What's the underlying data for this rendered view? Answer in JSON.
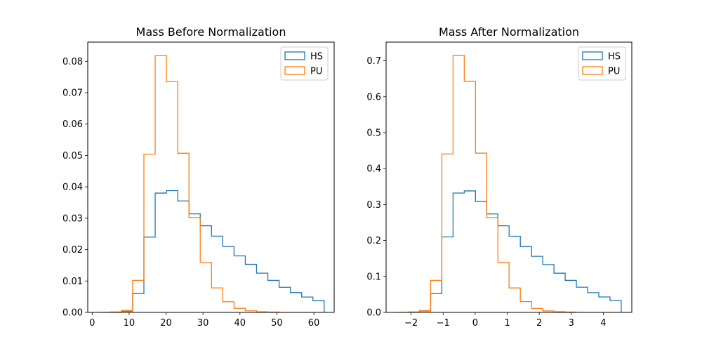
{
  "chart_data": [
    {
      "type": "histogram-step",
      "title": "Mass Before Normalization",
      "xlabel": "",
      "ylabel": "",
      "xlim": [
        -1.2,
        65.5
      ],
      "ylim": [
        0,
        0.0861
      ],
      "xticks": [
        0,
        10,
        20,
        30,
        40,
        50,
        60
      ],
      "xtick_labels": [
        "0",
        "10",
        "20",
        "30",
        "40",
        "50",
        "60"
      ],
      "yticks": [
        0.0,
        0.01,
        0.02,
        0.03,
        0.04,
        0.05,
        0.06,
        0.07,
        0.08
      ],
      "ytick_labels": [
        "0.00",
        "0.01",
        "0.02",
        "0.03",
        "0.04",
        "0.05",
        "0.06",
        "0.07",
        "0.08"
      ],
      "grid": false,
      "legend_position": "top-right",
      "bin_edges": [
        1.8,
        4.85,
        7.9,
        10.95,
        14.0,
        17.05,
        20.1,
        23.15,
        26.2,
        29.25,
        32.3,
        35.35,
        38.4,
        41.45,
        44.5,
        47.55,
        50.6,
        53.65,
        56.7,
        59.75,
        62.8
      ],
      "series": [
        {
          "name": "HS",
          "color": "#1f77b4",
          "values": [
            0.0,
            0.0001,
            0.0004,
            0.006,
            0.024,
            0.038,
            0.0388,
            0.0355,
            0.0314,
            0.0276,
            0.0243,
            0.021,
            0.018,
            0.0153,
            0.0125,
            0.0102,
            0.008,
            0.0063,
            0.0049,
            0.0037
          ]
        },
        {
          "name": "PU",
          "color": "#ff7f0e",
          "values": [
            0.0,
            0.0001,
            0.0006,
            0.0102,
            0.0504,
            0.0818,
            0.0735,
            0.0507,
            0.0302,
            0.0159,
            0.0078,
            0.0034,
            0.0013,
            0.0005,
            0.0002,
            0.0001,
            0.0,
            0.0,
            0.0,
            0.0
          ]
        }
      ]
    },
    {
      "type": "histogram-step",
      "title": "Mass After Normalization",
      "xlabel": "",
      "ylabel": "",
      "xlim": [
        -2.78,
        4.89
      ],
      "ylim": [
        0,
        0.752
      ],
      "xticks": [
        -2,
        -1,
        0,
        1,
        2,
        3,
        4
      ],
      "xtick_labels": [
        "−2",
        "−1",
        "0",
        "1",
        "2",
        "3",
        "4"
      ],
      "yticks": [
        0.0,
        0.1,
        0.2,
        0.3,
        0.4,
        0.5,
        0.6,
        0.7
      ],
      "ytick_labels": [
        "0.0",
        "0.1",
        "0.2",
        "0.3",
        "0.4",
        "0.5",
        "0.6",
        "0.7"
      ],
      "grid": false,
      "legend_position": "top-right",
      "bin_edges": [
        -2.44,
        -2.09,
        -1.74,
        -1.39,
        -1.04,
        -0.69,
        -0.34,
        0.01,
        0.36,
        0.71,
        1.06,
        1.41,
        1.76,
        2.11,
        2.46,
        2.81,
        3.16,
        3.51,
        3.86,
        4.21,
        4.56
      ],
      "series": [
        {
          "name": "HS",
          "color": "#1f77b4",
          "values": [
            0.0,
            0.001,
            0.004,
            0.052,
            0.21,
            0.332,
            0.338,
            0.309,
            0.274,
            0.241,
            0.212,
            0.183,
            0.156,
            0.133,
            0.109,
            0.089,
            0.07,
            0.055,
            0.043,
            0.033
          ]
        },
        {
          "name": "PU",
          "color": "#ff7f0e",
          "values": [
            0.0,
            0.001,
            0.005,
            0.089,
            0.441,
            0.715,
            0.643,
            0.443,
            0.264,
            0.139,
            0.068,
            0.03,
            0.011,
            0.004,
            0.002,
            0.001,
            0.0,
            0.0,
            0.0,
            0.0
          ]
        }
      ]
    }
  ]
}
